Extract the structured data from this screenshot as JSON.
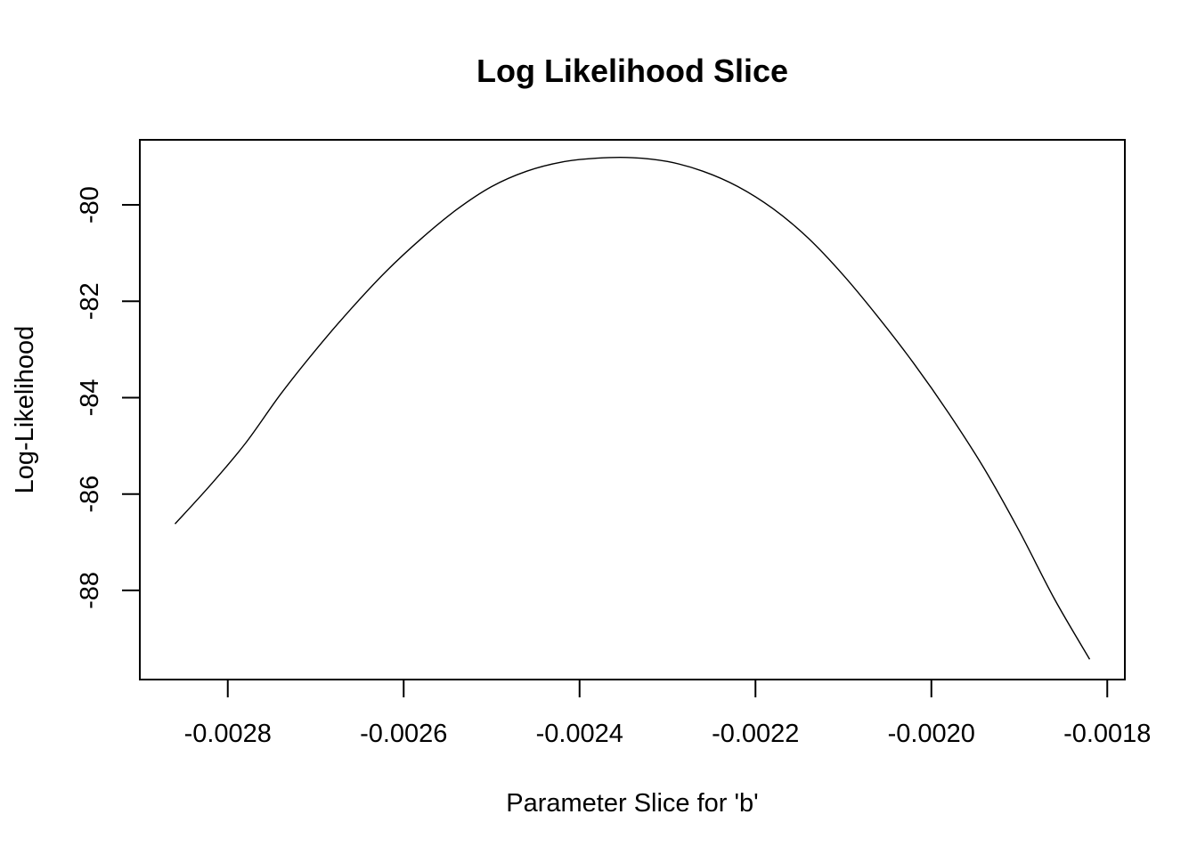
{
  "chart_data": {
    "type": "line",
    "title": "Log Likelihood Slice",
    "xlabel": "Parameter Slice for 'b'",
    "ylabel": "Log-Likelihood",
    "xlim": [
      -0.0029,
      -0.00178
    ],
    "ylim": [
      -89.85,
      -78.65
    ],
    "x_ticks": [
      -0.0028,
      -0.0026,
      -0.0024,
      -0.0022,
      -0.002,
      -0.0018
    ],
    "x_tick_labels": [
      "-0.0028",
      "-0.0026",
      "-0.0024",
      "-0.0022",
      "-0.0020",
      "-0.0018"
    ],
    "y_ticks": [
      -88,
      -86,
      -84,
      -82,
      -80
    ],
    "y_tick_labels": [
      "-88",
      "-86",
      "-84",
      "-82",
      "-80"
    ],
    "grid": false,
    "legend": "none",
    "line_color": "#000000",
    "series": [
      {
        "x": [
          -0.00286,
          -0.00282,
          -0.00278,
          -0.00274,
          -0.0027,
          -0.00266,
          -0.00262,
          -0.00258,
          -0.00254,
          -0.0025,
          -0.00246,
          -0.00242,
          -0.00238,
          -0.00234,
          -0.0023,
          -0.00226,
          -0.00222,
          -0.00218,
          -0.00214,
          -0.0021,
          -0.00206,
          -0.00202,
          -0.00198,
          -0.00194,
          -0.0019,
          -0.00186,
          -0.00182
        ],
        "y": [
          -86.62,
          -85.82,
          -84.95,
          -83.93,
          -83.01,
          -82.16,
          -81.38,
          -80.7,
          -80.1,
          -79.62,
          -79.3,
          -79.11,
          -79.03,
          -79.02,
          -79.1,
          -79.3,
          -79.62,
          -80.08,
          -80.69,
          -81.46,
          -82.34,
          -83.29,
          -84.33,
          -85.47,
          -86.77,
          -88.18,
          -89.43
        ]
      }
    ]
  }
}
